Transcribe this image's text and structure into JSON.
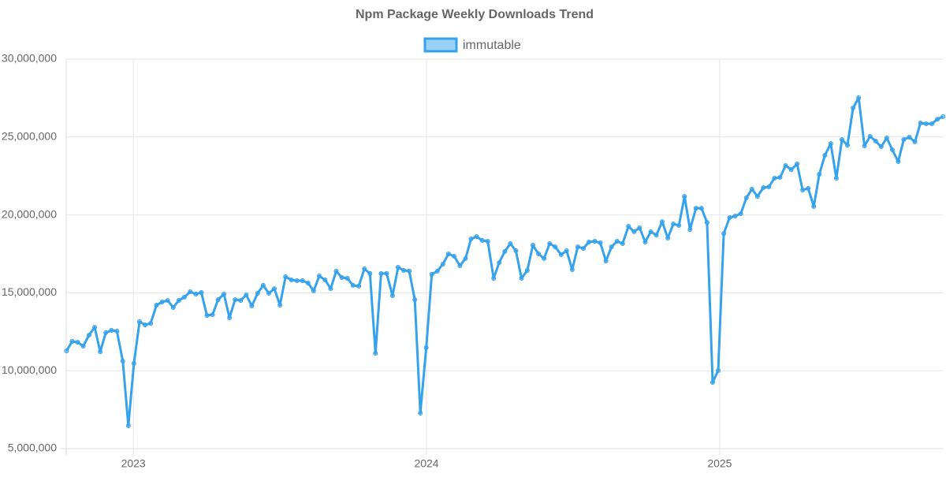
{
  "chart_data": {
    "type": "line",
    "title": "Npm Package Weekly Downloads Trend",
    "legend": "top",
    "grid": true,
    "xlim": [
      2022.771,
      2025.764
    ],
    "xticks": [
      2023,
      2024,
      2025
    ],
    "ylim": [
      5000000,
      30000000
    ],
    "yticks": [
      {
        "value": 5000000,
        "label": "5,000,000"
      },
      {
        "value": 10000000,
        "label": "10,000,000"
      },
      {
        "value": 15000000,
        "label": "15,000,000"
      },
      {
        "value": 20000000,
        "label": "20,000,000"
      },
      {
        "value": 25000000,
        "label": "25,000,000"
      },
      {
        "value": 30000000,
        "label": "30,000,000"
      }
    ],
    "x": [
      2022.772,
      2022.791,
      2022.81,
      2022.829,
      2022.849,
      2022.868,
      2022.887,
      2022.906,
      2022.925,
      2022.944,
      2022.964,
      2022.983,
      2023.002,
      2023.021,
      2023.04,
      2023.059,
      2023.079,
      2023.098,
      2023.117,
      2023.136,
      2023.155,
      2023.174,
      2023.194,
      2023.213,
      2023.232,
      2023.251,
      2023.27,
      2023.289,
      2023.309,
      2023.328,
      2023.347,
      2023.366,
      2023.385,
      2023.404,
      2023.424,
      2023.443,
      2023.462,
      2023.481,
      2023.5,
      2023.519,
      2023.539,
      2023.558,
      2023.577,
      2023.596,
      2023.615,
      2023.634,
      2023.654,
      2023.673,
      2023.692,
      2023.711,
      2023.73,
      2023.749,
      2023.769,
      2023.788,
      2023.807,
      2023.826,
      2023.845,
      2023.864,
      2023.884,
      2023.903,
      2023.922,
      2023.941,
      2023.96,
      2023.979,
      2023.999,
      2024.018,
      2024.037,
      2024.056,
      2024.075,
      2024.094,
      2024.114,
      2024.133,
      2024.152,
      2024.171,
      2024.19,
      2024.209,
      2024.229,
      2024.248,
      2024.267,
      2024.286,
      2024.305,
      2024.324,
      2024.344,
      2024.363,
      2024.382,
      2024.401,
      2024.42,
      2024.439,
      2024.459,
      2024.478,
      2024.497,
      2024.516,
      2024.535,
      2024.554,
      2024.574,
      2024.593,
      2024.612,
      2024.631,
      2024.65,
      2024.669,
      2024.689,
      2024.708,
      2024.727,
      2024.746,
      2024.765,
      2024.784,
      2024.804,
      2024.823,
      2024.842,
      2024.861,
      2024.88,
      2024.899,
      2024.919,
      2024.938,
      2024.957,
      2024.976,
      2024.995,
      2025.014,
      2025.034,
      2025.053,
      2025.072,
      2025.091,
      2025.11,
      2025.129,
      2025.149,
      2025.168,
      2025.187,
      2025.206,
      2025.225,
      2025.244,
      2025.264,
      2025.283,
      2025.302,
      2025.321,
      2025.34,
      2025.359,
      2025.379,
      2025.398,
      2025.417,
      2025.436,
      2025.455,
      2025.474,
      2025.494,
      2025.513,
      2025.532,
      2025.551,
      2025.57,
      2025.589,
      2025.609,
      2025.628,
      2025.647,
      2025.666,
      2025.685,
      2025.704,
      2025.724,
      2025.743,
      2025.762
    ],
    "series": [
      {
        "name": "immutable",
        "color": "#36a2eb",
        "values": [
          11270000,
          11880000,
          11830000,
          11580000,
          12290000,
          12790000,
          11220000,
          12440000,
          12590000,
          12540000,
          10620000,
          6470000,
          10470000,
          13150000,
          12940000,
          13040000,
          14210000,
          14410000,
          14510000,
          14060000,
          14510000,
          14720000,
          15070000,
          14920000,
          15020000,
          13550000,
          13600000,
          14560000,
          14920000,
          13400000,
          14560000,
          14510000,
          14870000,
          14160000,
          14970000,
          15480000,
          14970000,
          15270000,
          14210000,
          16030000,
          15830000,
          15780000,
          15780000,
          15630000,
          15120000,
          16080000,
          15830000,
          15270000,
          16390000,
          15980000,
          15930000,
          15480000,
          15430000,
          16540000,
          16240000,
          11120000,
          16240000,
          16240000,
          14820000,
          16640000,
          16440000,
          16390000,
          14560000,
          7280000,
          11480000,
          16190000,
          16390000,
          16840000,
          17500000,
          17350000,
          16740000,
          17200000,
          18460000,
          18610000,
          18360000,
          18310000,
          15930000,
          16940000,
          17650000,
          18160000,
          17700000,
          15930000,
          16440000,
          18060000,
          17500000,
          17200000,
          18160000,
          17950000,
          17450000,
          17700000,
          16490000,
          17950000,
          17850000,
          18260000,
          18310000,
          18210000,
          17040000,
          17950000,
          18310000,
          18160000,
          19270000,
          18920000,
          19170000,
          18260000,
          18920000,
          18710000,
          19570000,
          18510000,
          19420000,
          19320000,
          21190000,
          19070000,
          20430000,
          20430000,
          19520000,
          9250000,
          10010000,
          18810000,
          19830000,
          19930000,
          20080000,
          21090000,
          21650000,
          21190000,
          21750000,
          21800000,
          22360000,
          22410000,
          23170000,
          22910000,
          23270000,
          21600000,
          21700000,
          20540000,
          22610000,
          23830000,
          24580000,
          22360000,
          24840000,
          24480000,
          26860000,
          27520000,
          24430000,
          25040000,
          24740000,
          24380000,
          24940000,
          24180000,
          23420000,
          24840000,
          24990000,
          24690000,
          25900000,
          25850000,
          25850000,
          26150000,
          26310000
        ]
      }
    ]
  }
}
